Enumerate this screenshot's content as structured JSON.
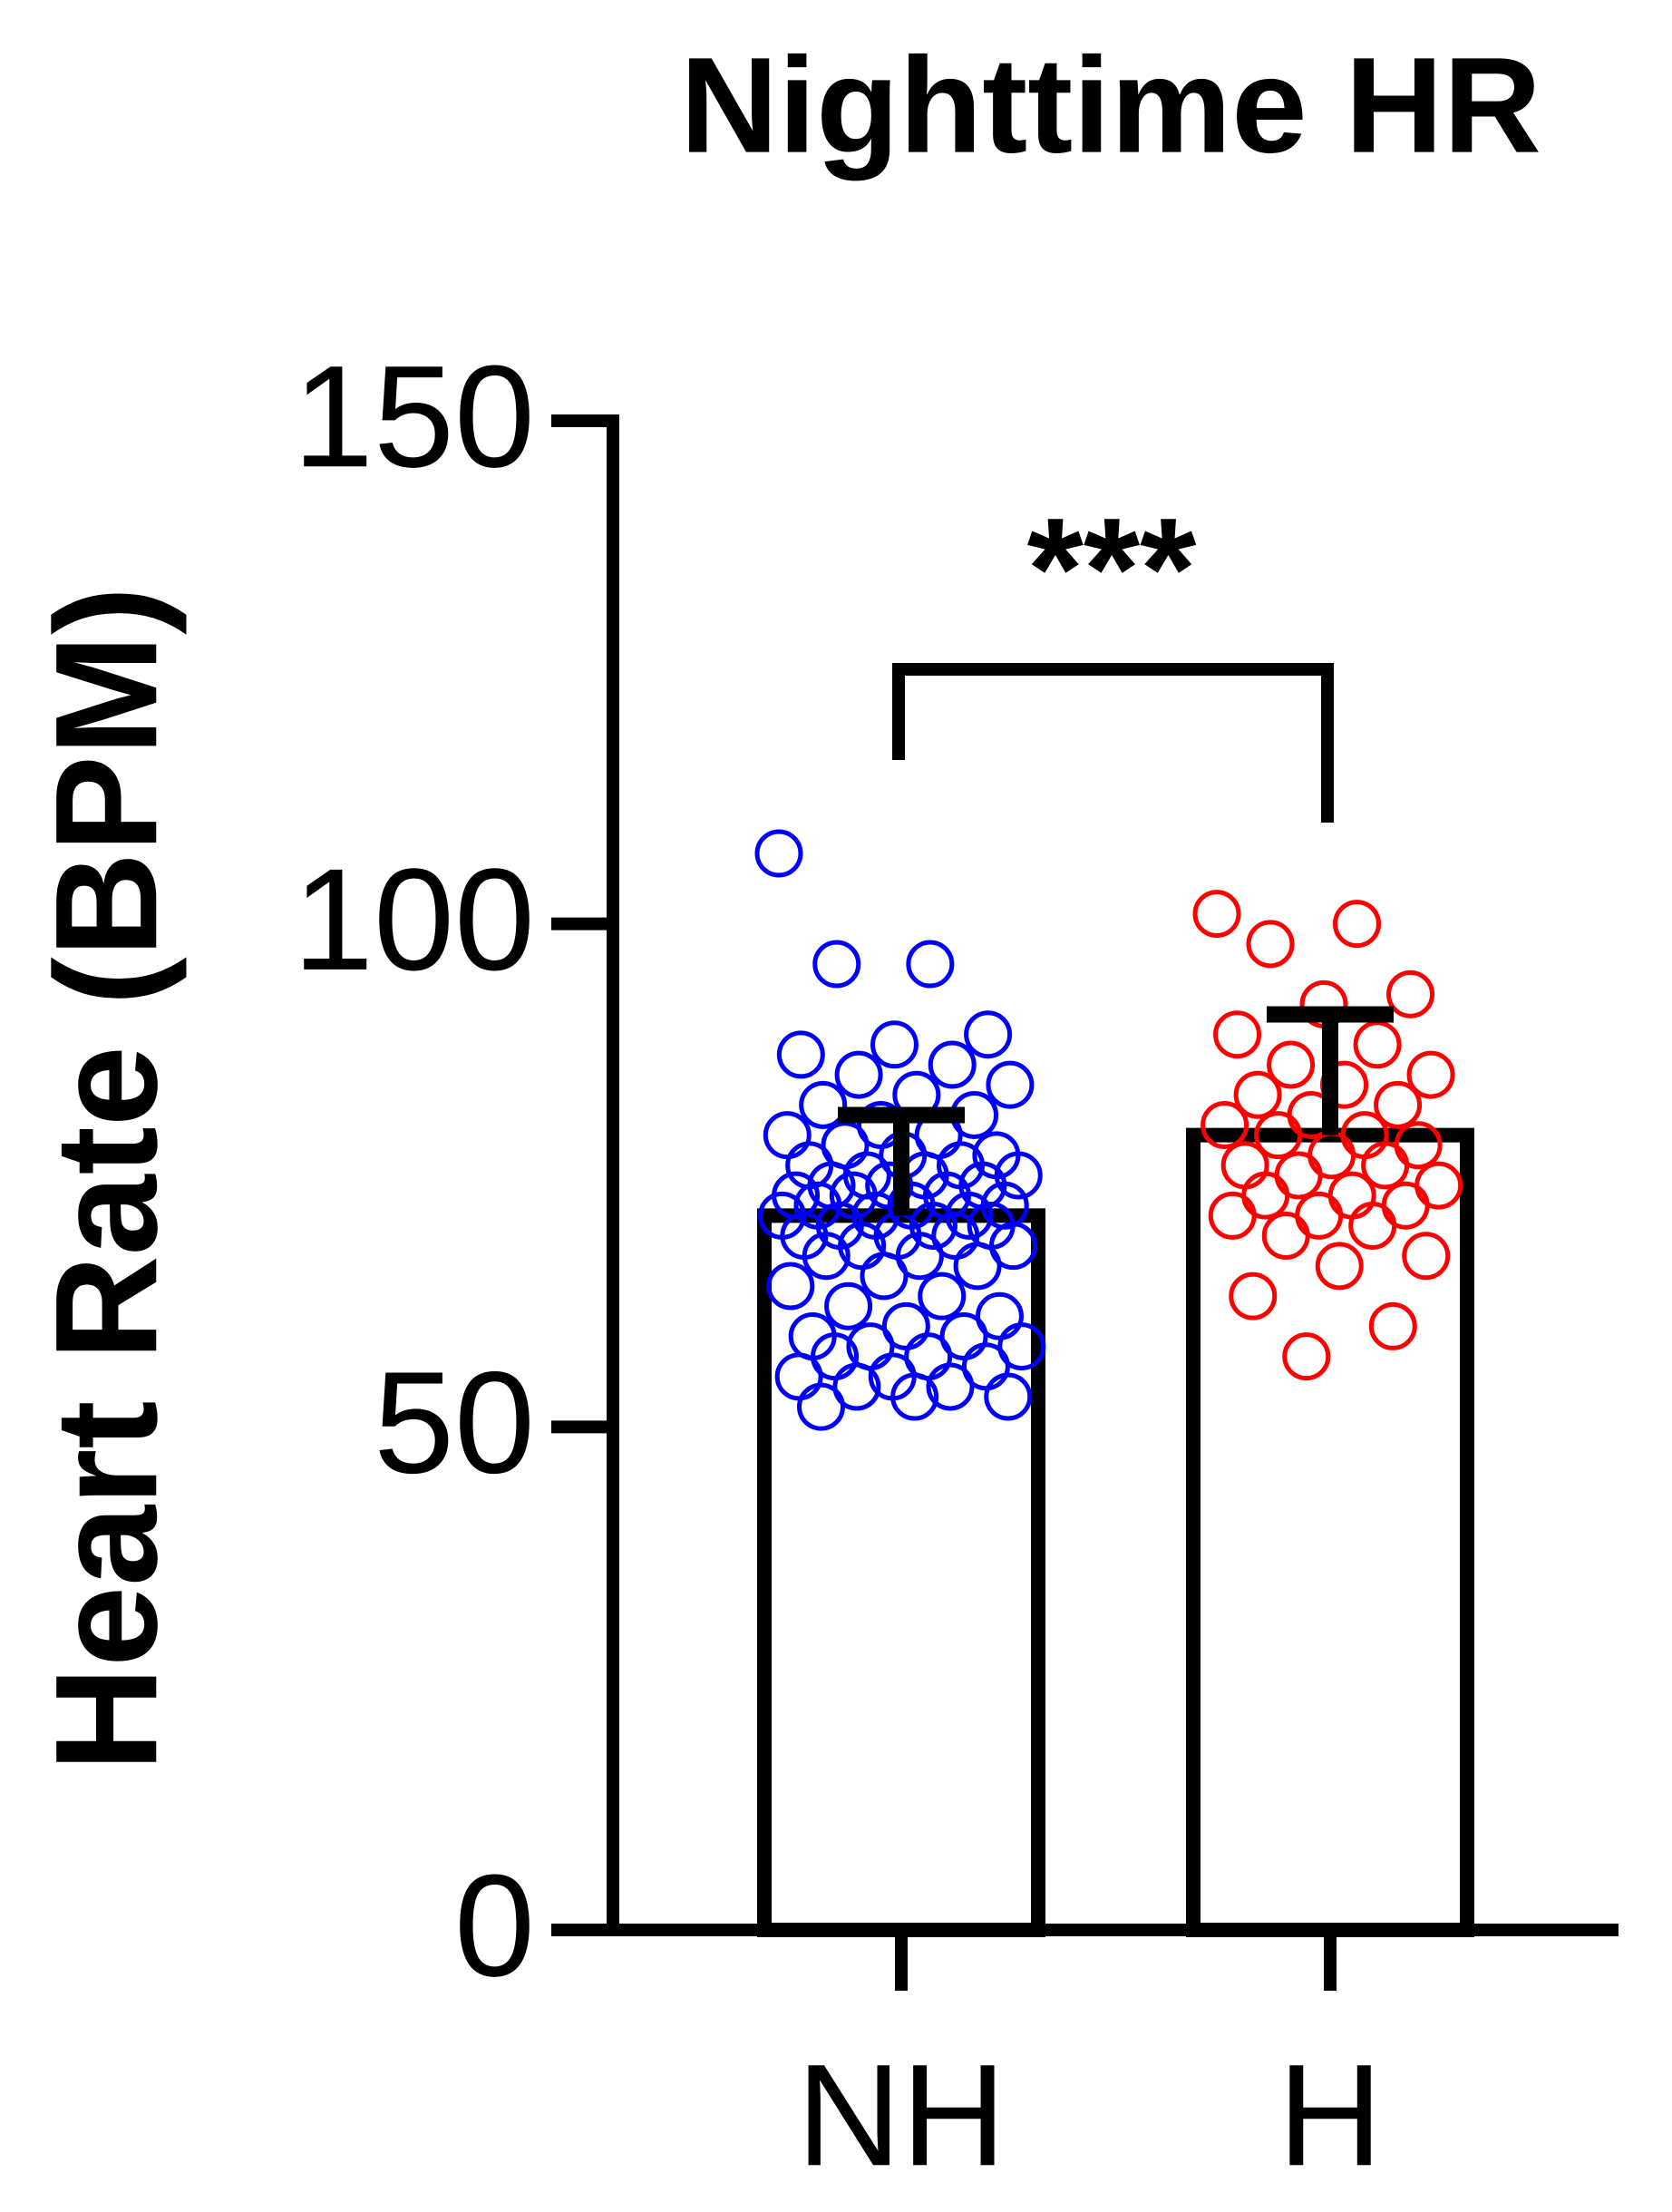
{
  "chart_data": {
    "type": "bar",
    "title": "Nighttime HR",
    "ylabel": "Heart Rate (BPM)",
    "categories": [
      "NH",
      "H"
    ],
    "values": [
      71,
      79
    ],
    "errors": [
      10,
      12
    ],
    "bar_fill": "#ffffff",
    "bar_edge": "#000000",
    "points": [
      {
        "color": "#0000ff",
        "values": [
          107,
          96,
          96,
          89,
          88,
          87,
          86,
          85,
          84,
          83,
          82,
          81,
          80,
          79,
          79,
          78,
          77,
          77,
          76,
          76,
          75,
          75,
          75,
          74,
          74,
          74,
          73,
          73,
          73,
          72,
          72,
          72,
          71,
          71,
          71,
          70,
          70,
          70,
          69,
          69,
          69,
          68,
          68,
          67,
          67,
          66,
          65,
          64,
          63,
          62,
          61,
          60,
          59,
          59,
          58,
          58,
          57,
          57,
          56,
          55,
          55,
          54,
          54,
          53,
          53,
          52
        ]
      },
      {
        "color": "#ff0000",
        "values": [
          101,
          100,
          98,
          93,
          92,
          89,
          88,
          86,
          85,
          84,
          83,
          82,
          81,
          80,
          79,
          79,
          78,
          77,
          76,
          76,
          75,
          74,
          73,
          73,
          72,
          71,
          71,
          70,
          69,
          67,
          66,
          63,
          60,
          57
        ]
      }
    ],
    "annotation": "***",
    "annotation_color": "#ff0000",
    "ylim": [
      0,
      150
    ],
    "yticks": [
      0,
      50,
      100,
      150
    ]
  }
}
